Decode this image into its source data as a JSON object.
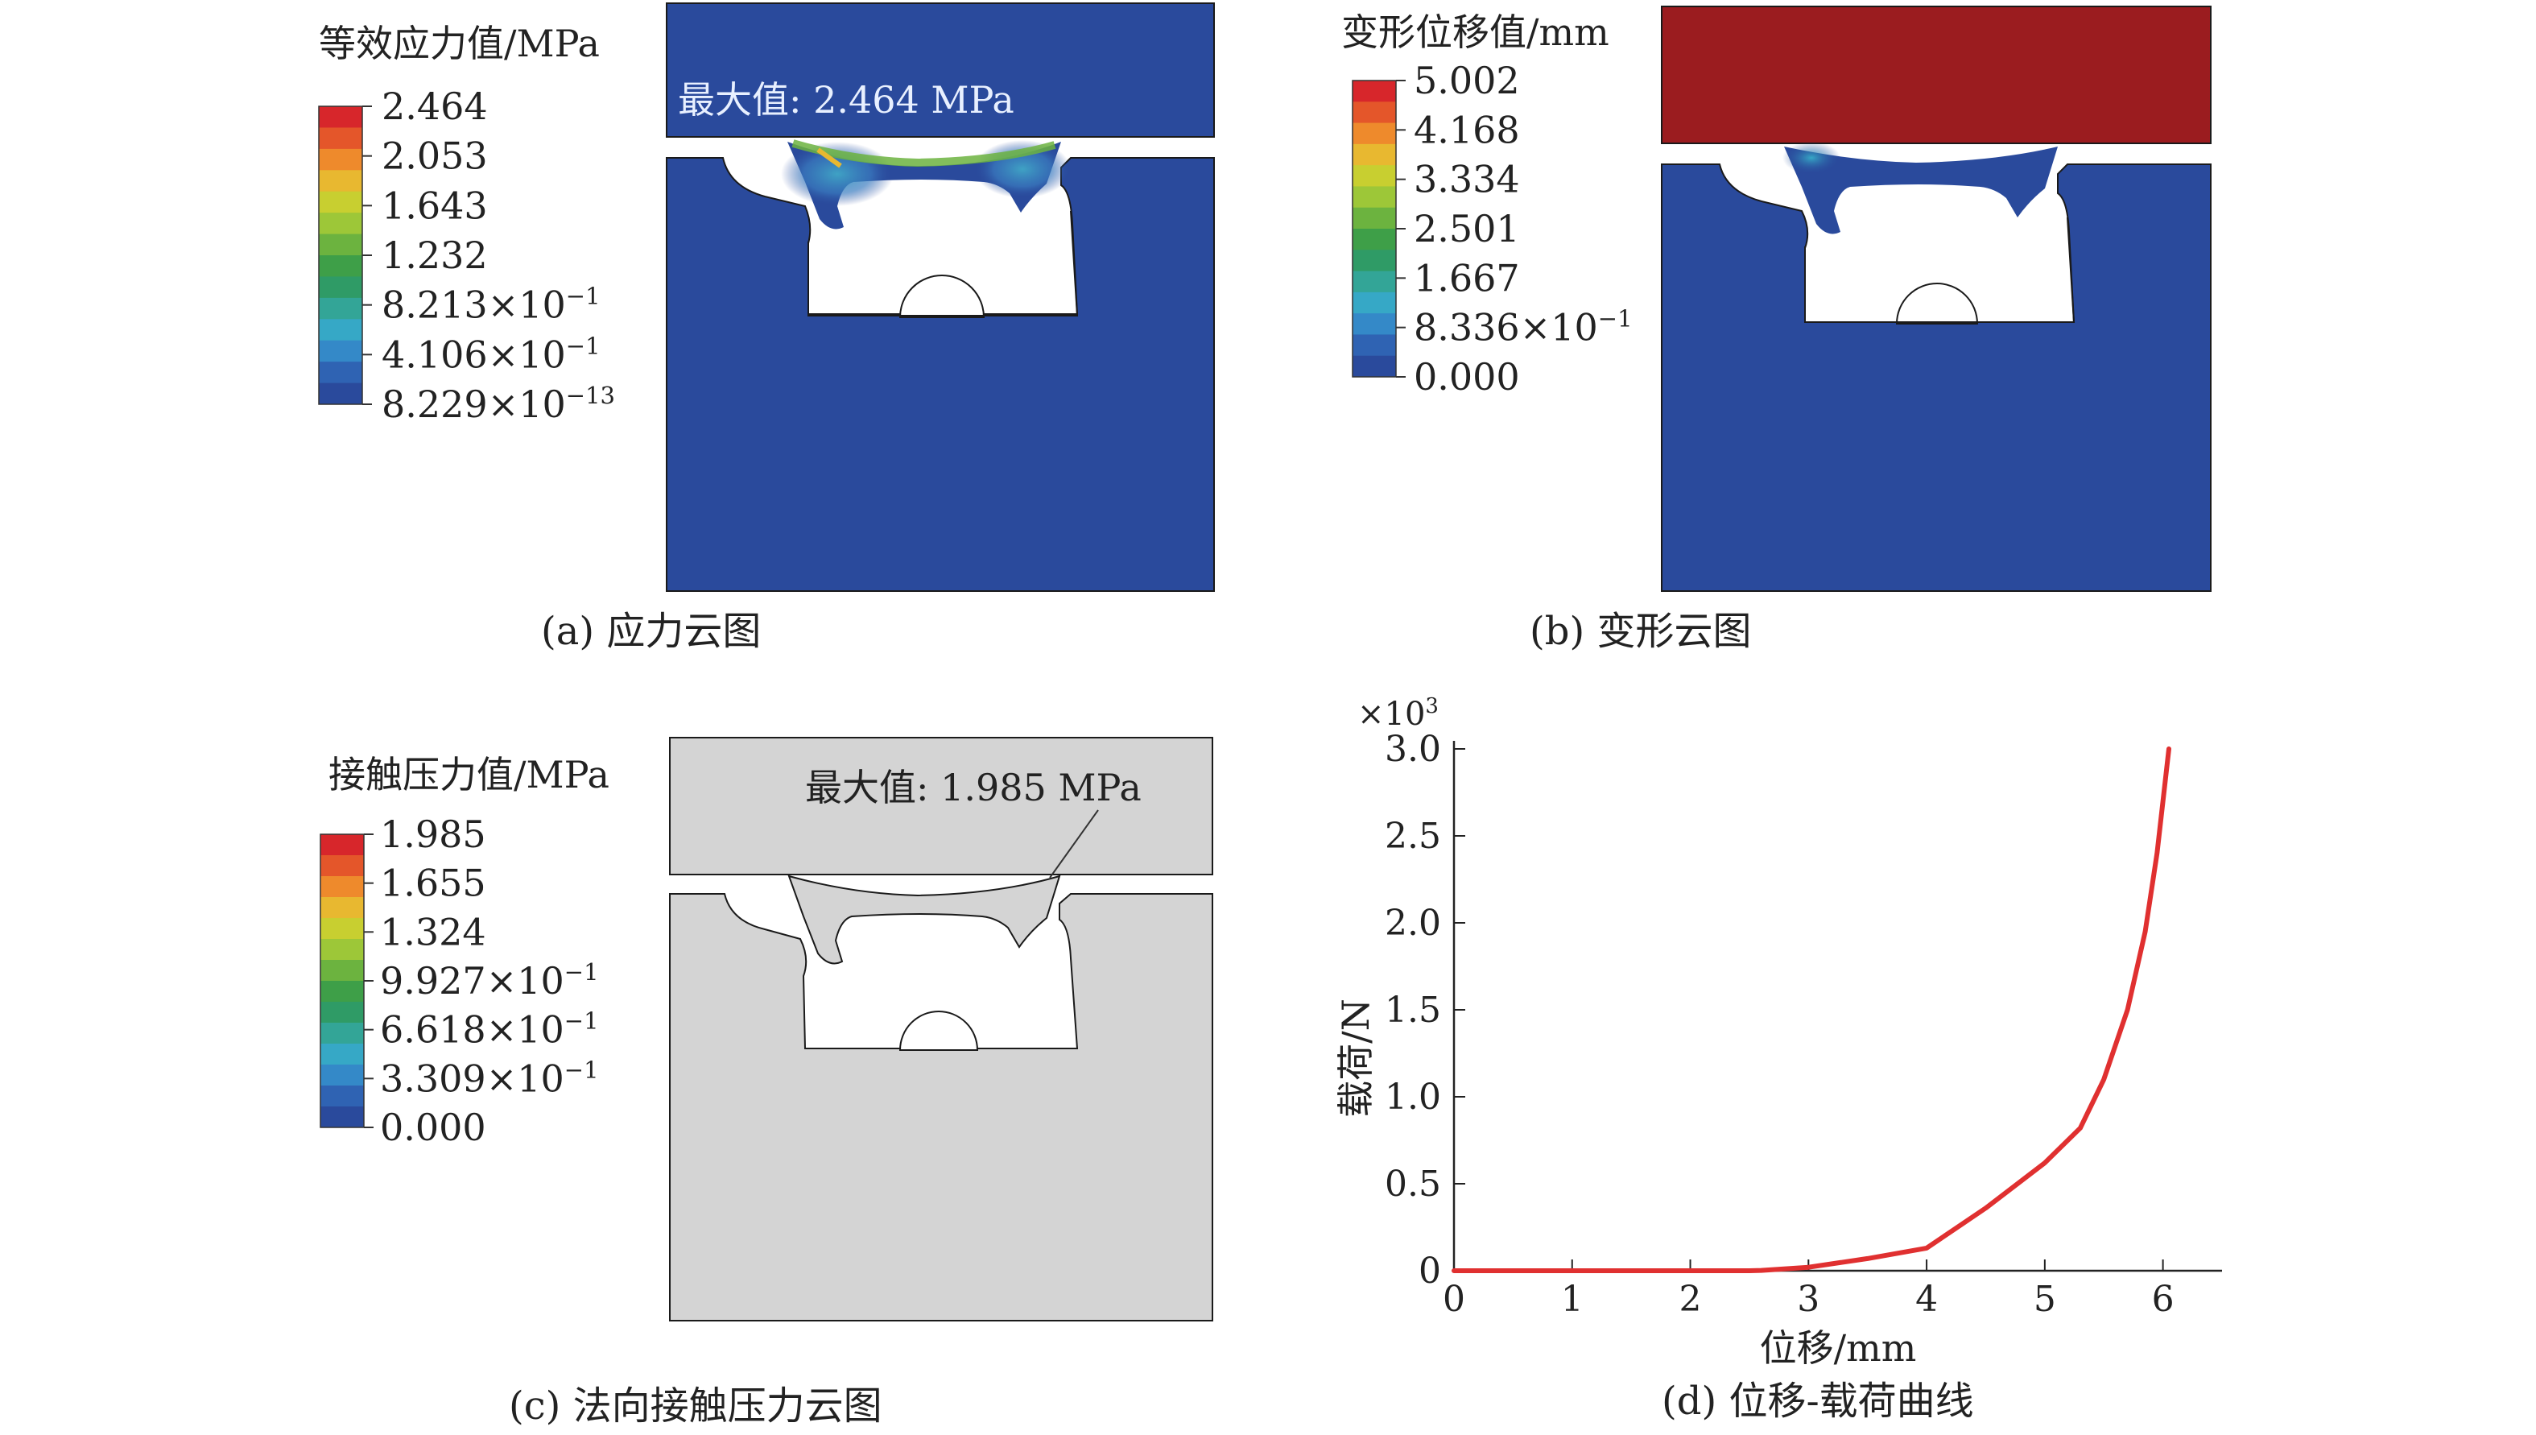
{
  "panels": {
    "a": {
      "caption": "(a) 应力云图",
      "legend_title": "等效应力值/MPa",
      "legend_labels": [
        {
          "main": "2.464",
          "sup": ""
        },
        {
          "main": "2.053",
          "sup": ""
        },
        {
          "main": "1.643",
          "sup": ""
        },
        {
          "main": "1.232",
          "sup": ""
        },
        {
          "main": "8.213×10",
          "sup": "−1"
        },
        {
          "main": "4.106×10",
          "sup": "−1"
        },
        {
          "main": "8.229×10",
          "sup": "−13"
        }
      ],
      "max_label": "最大值: 2.464 MPa"
    },
    "b": {
      "caption": "(b) 变形云图",
      "legend_title": "变形位移值/mm",
      "legend_labels": [
        {
          "main": "5.002",
          "sup": ""
        },
        {
          "main": "4.168",
          "sup": ""
        },
        {
          "main": "3.334",
          "sup": ""
        },
        {
          "main": "2.501",
          "sup": ""
        },
        {
          "main": "1.667",
          "sup": ""
        },
        {
          "main": "8.336×10",
          "sup": "−1"
        },
        {
          "main": "0.000",
          "sup": ""
        }
      ]
    },
    "c": {
      "caption": "(c) 法向接触压力云图",
      "legend_title": "接触压力值/MPa",
      "legend_labels": [
        {
          "main": "1.985",
          "sup": ""
        },
        {
          "main": "1.655",
          "sup": ""
        },
        {
          "main": "1.324",
          "sup": ""
        },
        {
          "main": "9.927×10",
          "sup": "−1"
        },
        {
          "main": "6.618×10",
          "sup": "−1"
        },
        {
          "main": "3.309×10",
          "sup": "−1"
        },
        {
          "main": "0.000",
          "sup": ""
        }
      ],
      "max_label": "最大值: 1.985 MPa"
    },
    "d": {
      "caption": "(d) 位移-载荷曲线"
    }
  },
  "colors": {
    "contour_scale": [
      "#d7262b",
      "#e4562a",
      "#ee8a2c",
      "#e8b830",
      "#c8cf30",
      "#9dc738",
      "#6cb33f",
      "#3e9f48",
      "#2f9b66",
      "#33a597",
      "#36a8c6",
      "#3489c8",
      "#2f63b3",
      "#2a4a9c"
    ],
    "model_blue": "#2a4a9c",
    "deformed_red": "#9b1c1f",
    "contact_gray": "#d4d4d4",
    "curve_red": "#e03030"
  },
  "chart_data": {
    "type": "line",
    "title": "",
    "xlabel": "位移/mm",
    "ylabel": "载荷/N",
    "y_multiplier": "×10",
    "y_multiplier_exp": "3",
    "xlim": [
      0,
      6.5
    ],
    "ylim": [
      0,
      3.0
    ],
    "xticks": [
      "0",
      "1",
      "2",
      "3",
      "4",
      "5",
      "6"
    ],
    "yticks": [
      "0",
      "0.5",
      "1.0",
      "1.5",
      "2.0",
      "2.5",
      "3.0"
    ],
    "grid": false,
    "series": [
      {
        "x": [
          0,
          0.5,
          1.0,
          1.5,
          2.0,
          2.5,
          2.6,
          3.0,
          3.5,
          4.0,
          4.5,
          5.0,
          5.3,
          5.5,
          5.7,
          5.85,
          5.95,
          6.05
        ],
        "y": [
          0,
          0,
          0,
          0,
          0,
          0,
          0.002,
          0.02,
          0.07,
          0.13,
          0.36,
          0.62,
          0.82,
          1.1,
          1.5,
          1.95,
          2.4,
          3.0
        ]
      }
    ]
  }
}
